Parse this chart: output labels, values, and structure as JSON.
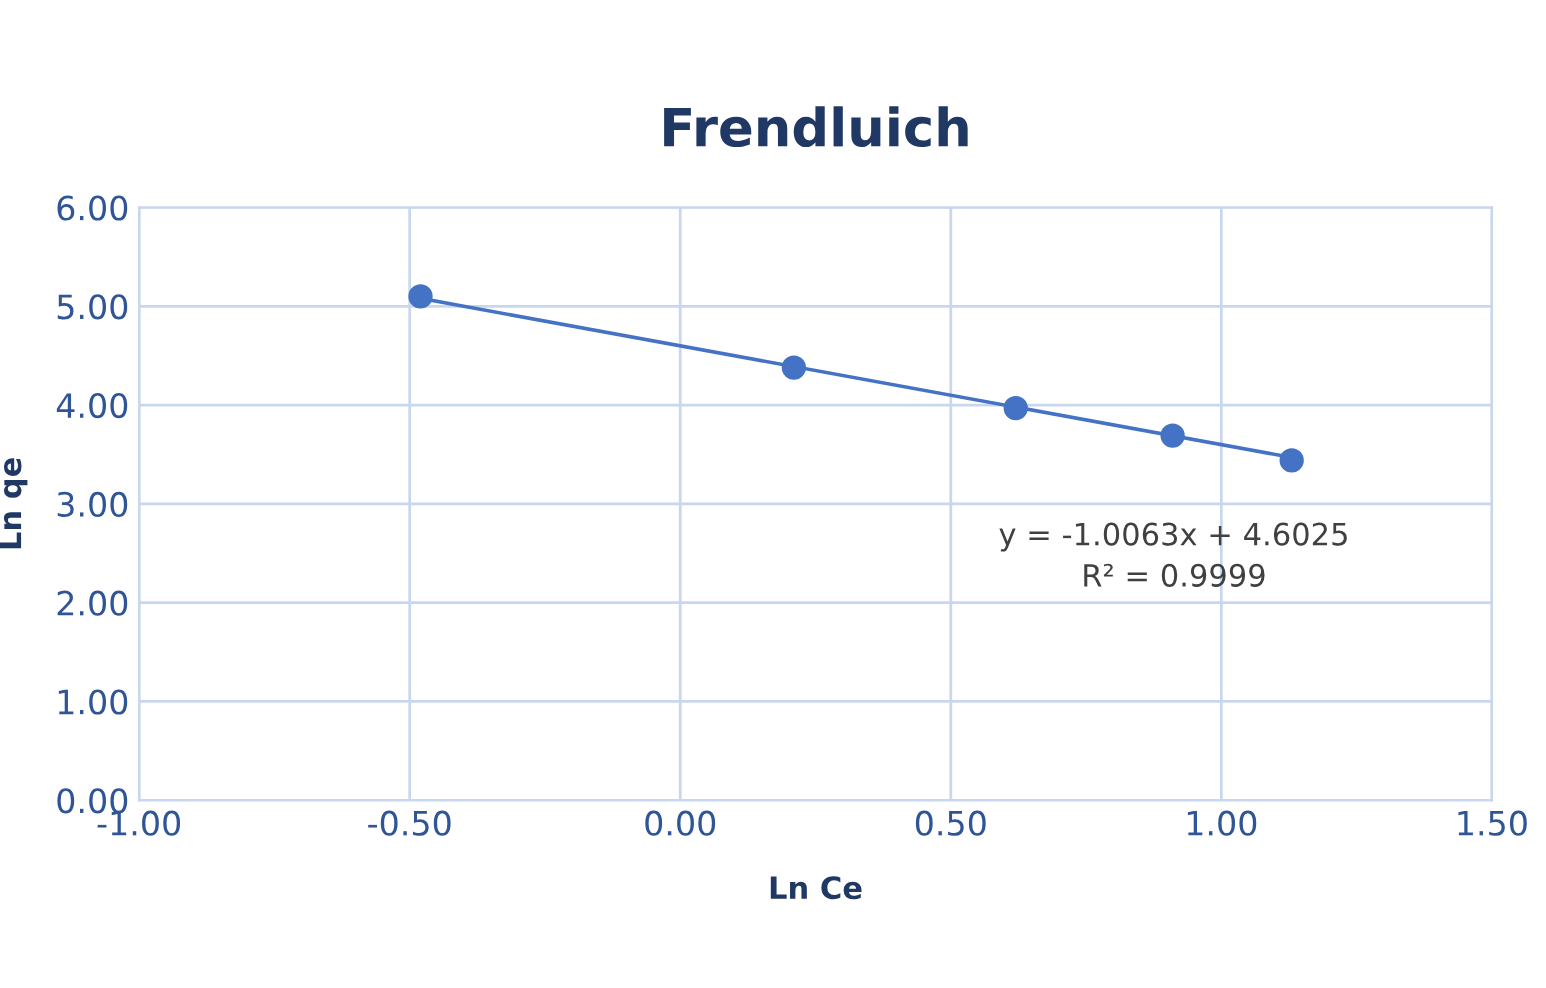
{
  "chart_data": {
    "type": "scatter",
    "title": "Frendluich",
    "xlabel": "Ln Ce",
    "ylabel": "Ln qe",
    "xlim": [
      -1.0,
      1.5
    ],
    "xticks": [
      {
        "value": -1.0,
        "label": "-1.00"
      },
      {
        "value": -0.5,
        "label": "-0.50"
      },
      {
        "value": 0.0,
        "label": "0.00"
      },
      {
        "value": 0.5,
        "label": "0.50"
      },
      {
        "value": 1.0,
        "label": "1.00"
      },
      {
        "value": 1.5,
        "label": "1.50"
      }
    ],
    "ylim": [
      0,
      6
    ],
    "yticks": [
      {
        "value": 0,
        "label": "0.00"
      },
      {
        "value": 1,
        "label": "1.00"
      },
      {
        "value": 2,
        "label": "2.00"
      },
      {
        "value": 3,
        "label": "3.00"
      },
      {
        "value": 4,
        "label": "4.00"
      },
      {
        "value": 5,
        "label": "5.00"
      },
      {
        "value": 6,
        "label": "6.00"
      }
    ],
    "grid": true,
    "series": [
      {
        "color": "#4472c4",
        "marker": "circle",
        "x": [
          -0.48,
          0.21,
          0.62,
          0.91,
          1.13
        ],
        "values": [
          5.1,
          4.38,
          3.97,
          3.69,
          3.44
        ]
      },
      {
        "type": "line",
        "color": "#4472c4",
        "marker": "none",
        "line_style": "solid",
        "x": [
          -0.48,
          1.13
        ],
        "values": [
          5.08,
          3.47
        ]
      }
    ],
    "annotations": [
      "y = -1.0063x + 4.6025\nR² = 0.9999"
    ]
  }
}
